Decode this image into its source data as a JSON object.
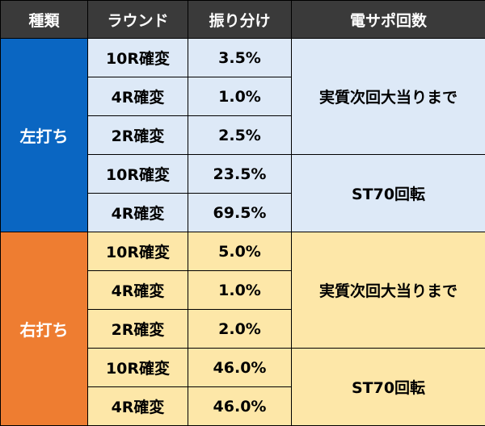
{
  "headers": [
    "種類",
    "ラウンド",
    "振り分け",
    "電サポ回数"
  ],
  "colors": {
    "header_bg": "#3a3a3a",
    "left_label_bg": "#0a66c2",
    "left_cell_bg": "#dde9f7",
    "right_label_bg": "#ee7d31",
    "right_cell_bg": "#fde7a8"
  },
  "groups": [
    {
      "label": "左打ち",
      "rows": [
        {
          "round": "10R確変",
          "rate": "3.5%"
        },
        {
          "round": "4R確変",
          "rate": "1.0%"
        },
        {
          "round": "2R確変",
          "rate": "2.5%"
        },
        {
          "round": "10R確変",
          "rate": "23.5%"
        },
        {
          "round": "4R確変",
          "rate": "69.5%"
        }
      ],
      "support": [
        "実質次回大当りまで",
        "ST70回転"
      ]
    },
    {
      "label": "右打ち",
      "rows": [
        {
          "round": "10R確変",
          "rate": "5.0%"
        },
        {
          "round": "4R確変",
          "rate": "1.0%"
        },
        {
          "round": "2R確変",
          "rate": "2.0%"
        },
        {
          "round": "10R確変",
          "rate": "46.0%"
        },
        {
          "round": "4R確変",
          "rate": "46.0%"
        }
      ],
      "support": [
        "実質次回大当りまで",
        "ST70回転"
      ]
    }
  ]
}
